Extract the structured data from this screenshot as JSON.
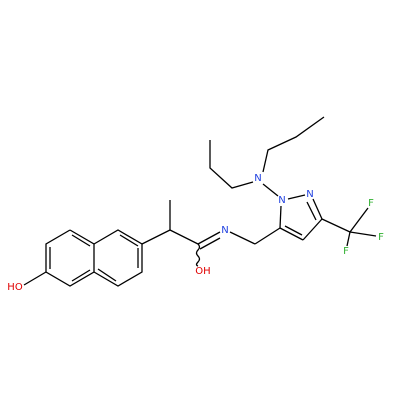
{
  "atoms": [
    {
      "label": "HO",
      "element": "O"
    },
    {
      "label": "N",
      "element": "N"
    },
    {
      "label": "OH",
      "element": "O"
    },
    {
      "label": "N",
      "element": "N"
    },
    {
      "label": "N",
      "element": "N"
    },
    {
      "label": "N",
      "element": "N"
    },
    {
      "label": "F",
      "element": "F"
    },
    {
      "label": "F",
      "element": "F"
    },
    {
      "label": "F",
      "element": "F"
    }
  ]
}
